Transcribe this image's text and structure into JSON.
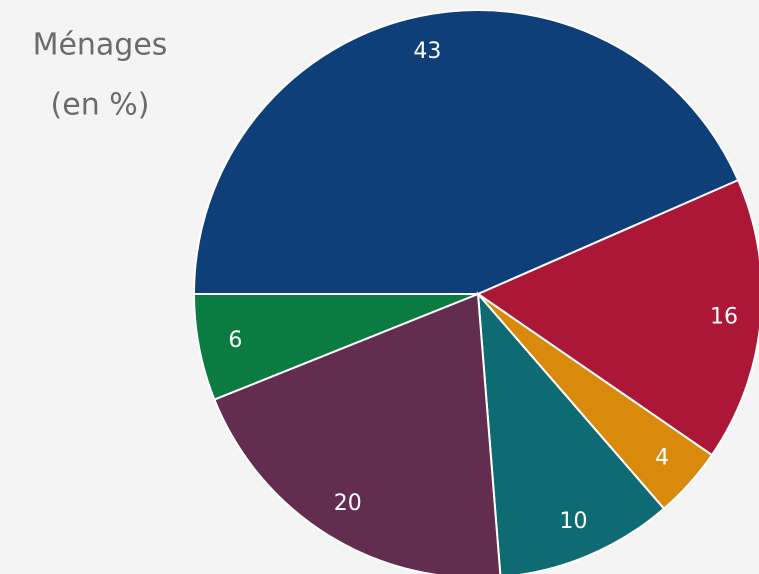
{
  "chart_data": {
    "type": "pie",
    "title": [
      "Ménages",
      "(en %)"
    ],
    "values": [
      43,
      16,
      4,
      10,
      20,
      6
    ],
    "colors": [
      "#0f3f78",
      "#ac1637",
      "#d98a0a",
      "#0f6b73",
      "#622d4f",
      "#0a7c42"
    ]
  }
}
